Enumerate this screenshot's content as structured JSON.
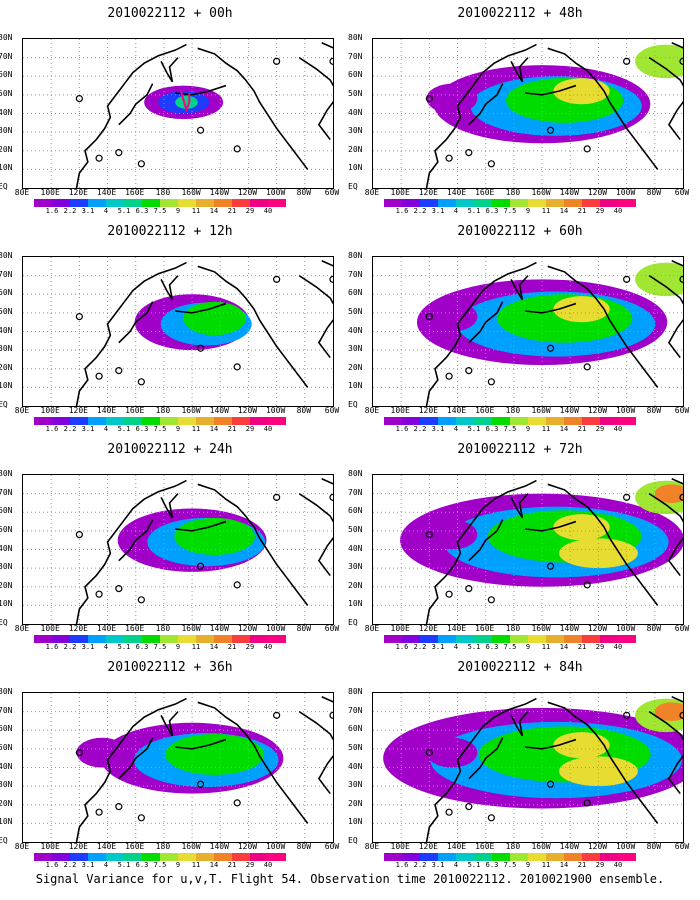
{
  "panels": [
    {
      "title": "2010022112 + 00h",
      "col": 0,
      "row": 0,
      "intensity": 0
    },
    {
      "title": "2010022112 + 12h",
      "col": 0,
      "row": 1,
      "intensity": 1
    },
    {
      "title": "2010022112 + 24h",
      "col": 0,
      "row": 2,
      "intensity": 2
    },
    {
      "title": "2010022112 + 36h",
      "col": 0,
      "row": 3,
      "intensity": 3
    },
    {
      "title": "2010022112 + 48h",
      "col": 1,
      "row": 0,
      "intensity": 4
    },
    {
      "title": "2010022112 + 60h",
      "col": 1,
      "row": 1,
      "intensity": 5
    },
    {
      "title": "2010022112 + 72h",
      "col": 1,
      "row": 2,
      "intensity": 6
    },
    {
      "title": "2010022112 + 84h",
      "col": 1,
      "row": 3,
      "intensity": 7
    }
  ],
  "lat_labels": [
    "80N",
    "70N",
    "60N",
    "50N",
    "40N",
    "30N",
    "20N",
    "10N",
    "EQ"
  ],
  "lon_labels": [
    "80E",
    "100E",
    "120E",
    "140E",
    "160E",
    "180",
    "160W",
    "140W",
    "120W",
    "100W",
    "80W",
    "60W"
  ],
  "colorbar": {
    "labels": [
      "1.6",
      "2.2",
      "3.1",
      "4",
      "5.1",
      "6.3",
      "7.5",
      "9",
      "11",
      "14",
      "21",
      "29",
      "40"
    ],
    "colors": [
      "#a000c8",
      "#8200dc",
      "#1e3cff",
      "#00a0ff",
      "#00c8c8",
      "#00d28c",
      "#00dc00",
      "#a0e632",
      "#e6dc32",
      "#e6af2d",
      "#f08228",
      "#fa3c3c",
      "#f00082",
      "#ff0080"
    ]
  },
  "footer": "Signal Variance for u,v,T. Flight 54. Observation time 2010022112. 2010021900 ensemble."
}
